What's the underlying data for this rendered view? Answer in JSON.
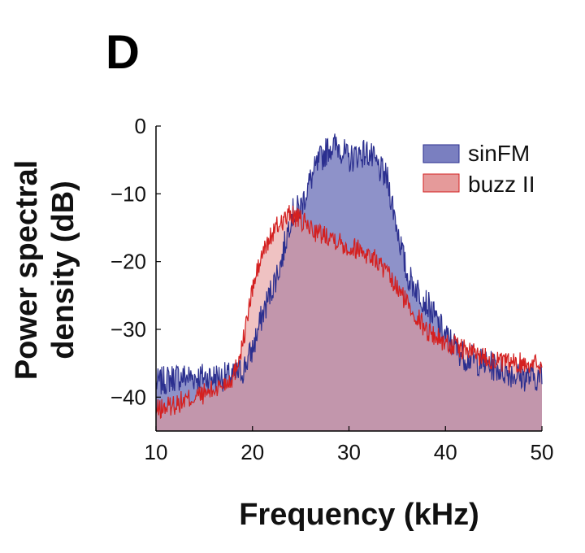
{
  "panel_label": "D",
  "colors": {
    "sinFM_fill": "#7a7fc0",
    "sinFM_line": "#2b2f8f",
    "buzz_fill": "#e59a9a",
    "buzz_line": "#d42020"
  },
  "chart_data": {
    "type": "area",
    "title": "",
    "xlabel": "Frequency (kHz)",
    "ylabel_lines": [
      "Power spectral",
      "density (dB)"
    ],
    "xlim": [
      10,
      50
    ],
    "ylim": [
      -45,
      0
    ],
    "xticks": [
      10,
      20,
      30,
      40,
      50
    ],
    "yticks": [
      0,
      -10,
      -20,
      -30,
      -40
    ],
    "xtick_labels": [
      "10",
      "20",
      "30",
      "40",
      "50"
    ],
    "ytick_labels": [
      "0",
      "−10",
      "−20",
      "−30",
      "−40"
    ],
    "grid": false,
    "legend_position": "top-right",
    "x": [
      10,
      12,
      14,
      16,
      18,
      19,
      20,
      21,
      22,
      23,
      24,
      25,
      26,
      27,
      28,
      29,
      30,
      31,
      32,
      33,
      34,
      35,
      36,
      37,
      38,
      40,
      42,
      44,
      46,
      48,
      50
    ],
    "series": [
      {
        "name": "sinFM",
        "values": [
          -38,
          -37,
          -37,
          -37,
          -37,
          -36,
          -33,
          -28,
          -24,
          -20,
          -13,
          -12,
          -8,
          -5,
          -3,
          -3,
          -5,
          -4,
          -4,
          -6,
          -8,
          -15,
          -22,
          -24,
          -26,
          -31,
          -34,
          -35,
          -36,
          -37,
          -37
        ]
      },
      {
        "name": "buzz II",
        "values": [
          -42,
          -41,
          -40,
          -39,
          -37,
          -32,
          -24,
          -19,
          -16,
          -14,
          -13,
          -14,
          -15,
          -16,
          -16,
          -17,
          -18,
          -18,
          -19,
          -20,
          -22,
          -24,
          -26,
          -28,
          -30,
          -32,
          -33,
          -34,
          -35,
          -35,
          -35
        ]
      }
    ]
  }
}
